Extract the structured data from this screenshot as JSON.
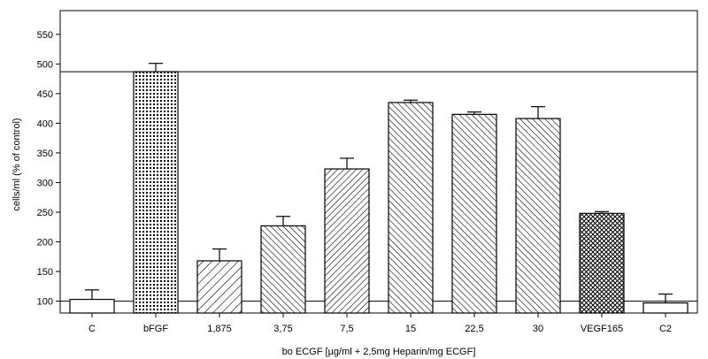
{
  "chart_data": {
    "type": "bar",
    "title": "",
    "xlabel": "bo ECGF [µg/ml + 2,5mg Heparin/mg ECGF]",
    "ylabel": "cells/ml (% of control)",
    "ylim": [
      80,
      590
    ],
    "yticks": [
      100,
      150,
      200,
      250,
      300,
      350,
      400,
      450,
      500,
      550
    ],
    "grid": false,
    "legend": "none",
    "reference_lines": [
      100,
      487
    ],
    "categories": [
      "C",
      "bFGF",
      "1,875",
      "3,75",
      "7,5",
      "15",
      "22,5",
      "30",
      "VEGF165",
      "C2"
    ],
    "values": [
      103,
      487,
      168,
      227,
      323,
      435,
      415,
      408,
      248,
      97
    ],
    "errors": [
      16,
      14,
      20,
      16,
      18,
      4,
      4,
      20,
      3,
      15
    ],
    "patterns": [
      "none",
      "dots",
      "hatch-fwd-wide",
      "hatch-back",
      "hatch-fwd",
      "hatch-back",
      "hatch-back",
      "hatch-back",
      "crosshatch",
      "none"
    ]
  }
}
